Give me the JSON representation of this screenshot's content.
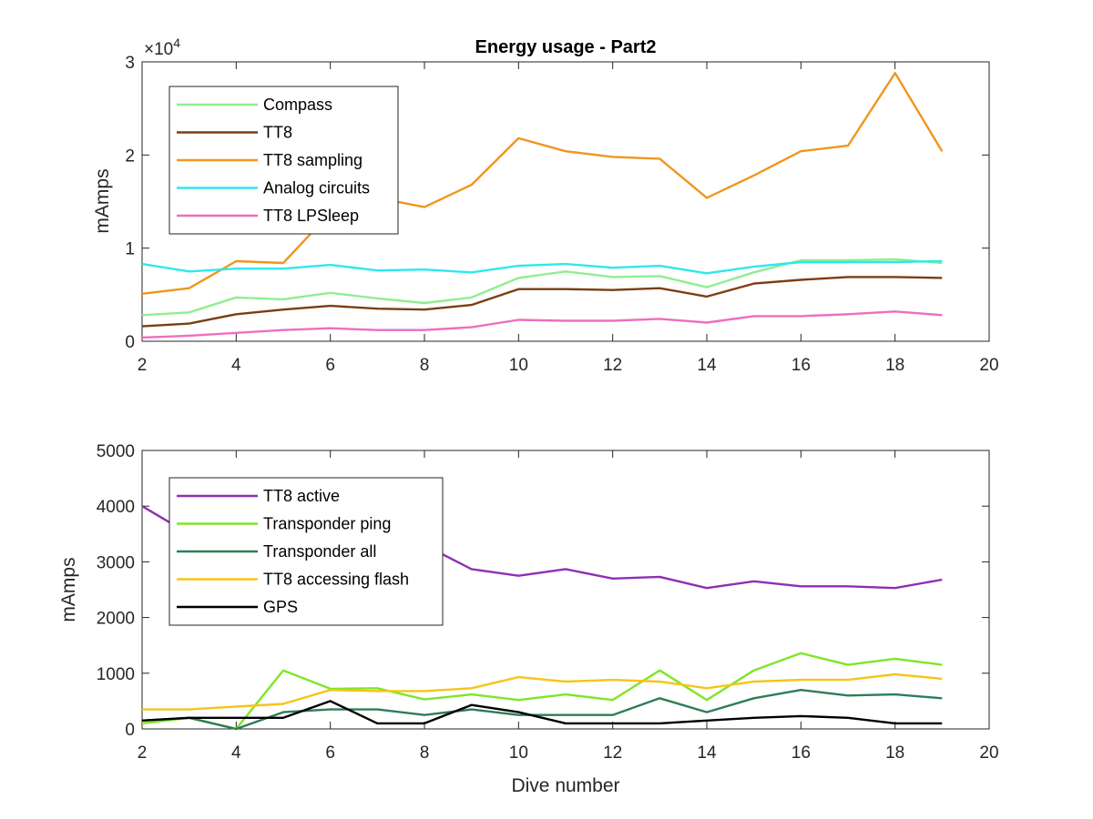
{
  "figure": {
    "title": "Energy usage - Part2",
    "xlabel": "Dive number"
  },
  "chart_data": [
    {
      "type": "line",
      "title": "Energy usage - Part2",
      "xlabel": "",
      "ylabel": "mAmps",
      "y_multiplier_label": "×10",
      "y_multiplier_exp": "4",
      "xlim": [
        2,
        20
      ],
      "ylim": [
        0,
        30000
      ],
      "xticks": [
        "2",
        "4",
        "6",
        "8",
        "10",
        "12",
        "14",
        "16",
        "18",
        "20"
      ],
      "yticks": [
        "0",
        "1",
        "2",
        "3"
      ],
      "ytick_values": [
        0,
        10000,
        20000,
        30000
      ],
      "legend_position": "top-left",
      "grid": false,
      "x": [
        2,
        3,
        4,
        5,
        6,
        7,
        8,
        9,
        10,
        11,
        12,
        13,
        14,
        15,
        16,
        17,
        18,
        19
      ],
      "series": [
        {
          "name": "Compass",
          "color": "#90ee90",
          "values": [
            2800,
            3100,
            4700,
            4500,
            5200,
            4600,
            4100,
            4700,
            6800,
            7500,
            6900,
            7000,
            5800,
            7400,
            8700,
            8700,
            8800,
            8400
          ]
        },
        {
          "name": "TT8",
          "color": "#7a3e12",
          "values": [
            1600,
            1900,
            2900,
            3400,
            3800,
            3500,
            3400,
            3900,
            5600,
            5600,
            5500,
            5700,
            4800,
            6200,
            6600,
            6900,
            6900,
            6800
          ]
        },
        {
          "name": "TT8 sampling",
          "color": "#f0961e",
          "values": [
            5100,
            5700,
            8600,
            8400,
            13800,
            15400,
            14400,
            16800,
            21800,
            20400,
            19800,
            19600,
            15400,
            17800,
            20400,
            21000,
            28800,
            20400
          ]
        },
        {
          "name": "Analog circuits",
          "color": "#2ee8ee",
          "values": [
            8300,
            7500,
            7800,
            7800,
            8200,
            7600,
            7700,
            7400,
            8100,
            8300,
            7900,
            8100,
            7300,
            8000,
            8500,
            8500,
            8500,
            8600
          ]
        },
        {
          "name": "TT8 LPSleep",
          "color": "#ee6ebe",
          "values": [
            400,
            600,
            900,
            1200,
            1400,
            1200,
            1200,
            1500,
            2300,
            2200,
            2200,
            2400,
            2000,
            2700,
            2700,
            2900,
            3200,
            2800
          ]
        }
      ]
    },
    {
      "type": "line",
      "title": "",
      "xlabel": "Dive number",
      "ylabel": "mAmps",
      "xlim": [
        2,
        20
      ],
      "ylim": [
        0,
        5000
      ],
      "xticks": [
        "2",
        "4",
        "6",
        "8",
        "10",
        "12",
        "14",
        "16",
        "18",
        "20"
      ],
      "yticks": [
        "0",
        "1000",
        "2000",
        "3000",
        "4000",
        "5000"
      ],
      "ytick_values": [
        0,
        1000,
        2000,
        3000,
        4000,
        5000
      ],
      "legend_position": "top-left",
      "grid": false,
      "x": [
        2,
        3,
        4,
        5,
        6,
        7,
        8,
        9,
        10,
        11,
        12,
        13,
        14,
        15,
        16,
        17,
        18,
        19
      ],
      "series": [
        {
          "name": "TT8 active",
          "color": "#8e2fb4",
          "values": [
            4000,
            3500,
            3400,
            3400,
            3500,
            3400,
            3300,
            2870,
            2750,
            2870,
            2700,
            2730,
            2530,
            2650,
            2560,
            2560,
            2530,
            2680
          ]
        },
        {
          "name": "Transponder ping",
          "color": "#7ee628",
          "values": [
            100,
            200,
            0,
            1050,
            720,
            730,
            530,
            620,
            520,
            620,
            520,
            1050,
            520,
            1050,
            1360,
            1150,
            1260,
            1150
          ]
        },
        {
          "name": "Transponder all",
          "color": "#2e7d56",
          "values": [
            150,
            200,
            0,
            300,
            350,
            350,
            250,
            350,
            250,
            250,
            250,
            550,
            300,
            550,
            700,
            600,
            620,
            550
          ]
        },
        {
          "name": "TT8 accessing flash",
          "color": "#f7c41a",
          "values": [
            350,
            350,
            400,
            450,
            700,
            680,
            680,
            730,
            930,
            850,
            880,
            850,
            730,
            850,
            880,
            880,
            980,
            900
          ]
        },
        {
          "name": "GPS",
          "color": "#000000",
          "values": [
            150,
            200,
            200,
            200,
            500,
            100,
            100,
            430,
            300,
            100,
            100,
            100,
            150,
            200,
            230,
            200,
            100,
            100
          ]
        }
      ]
    }
  ]
}
